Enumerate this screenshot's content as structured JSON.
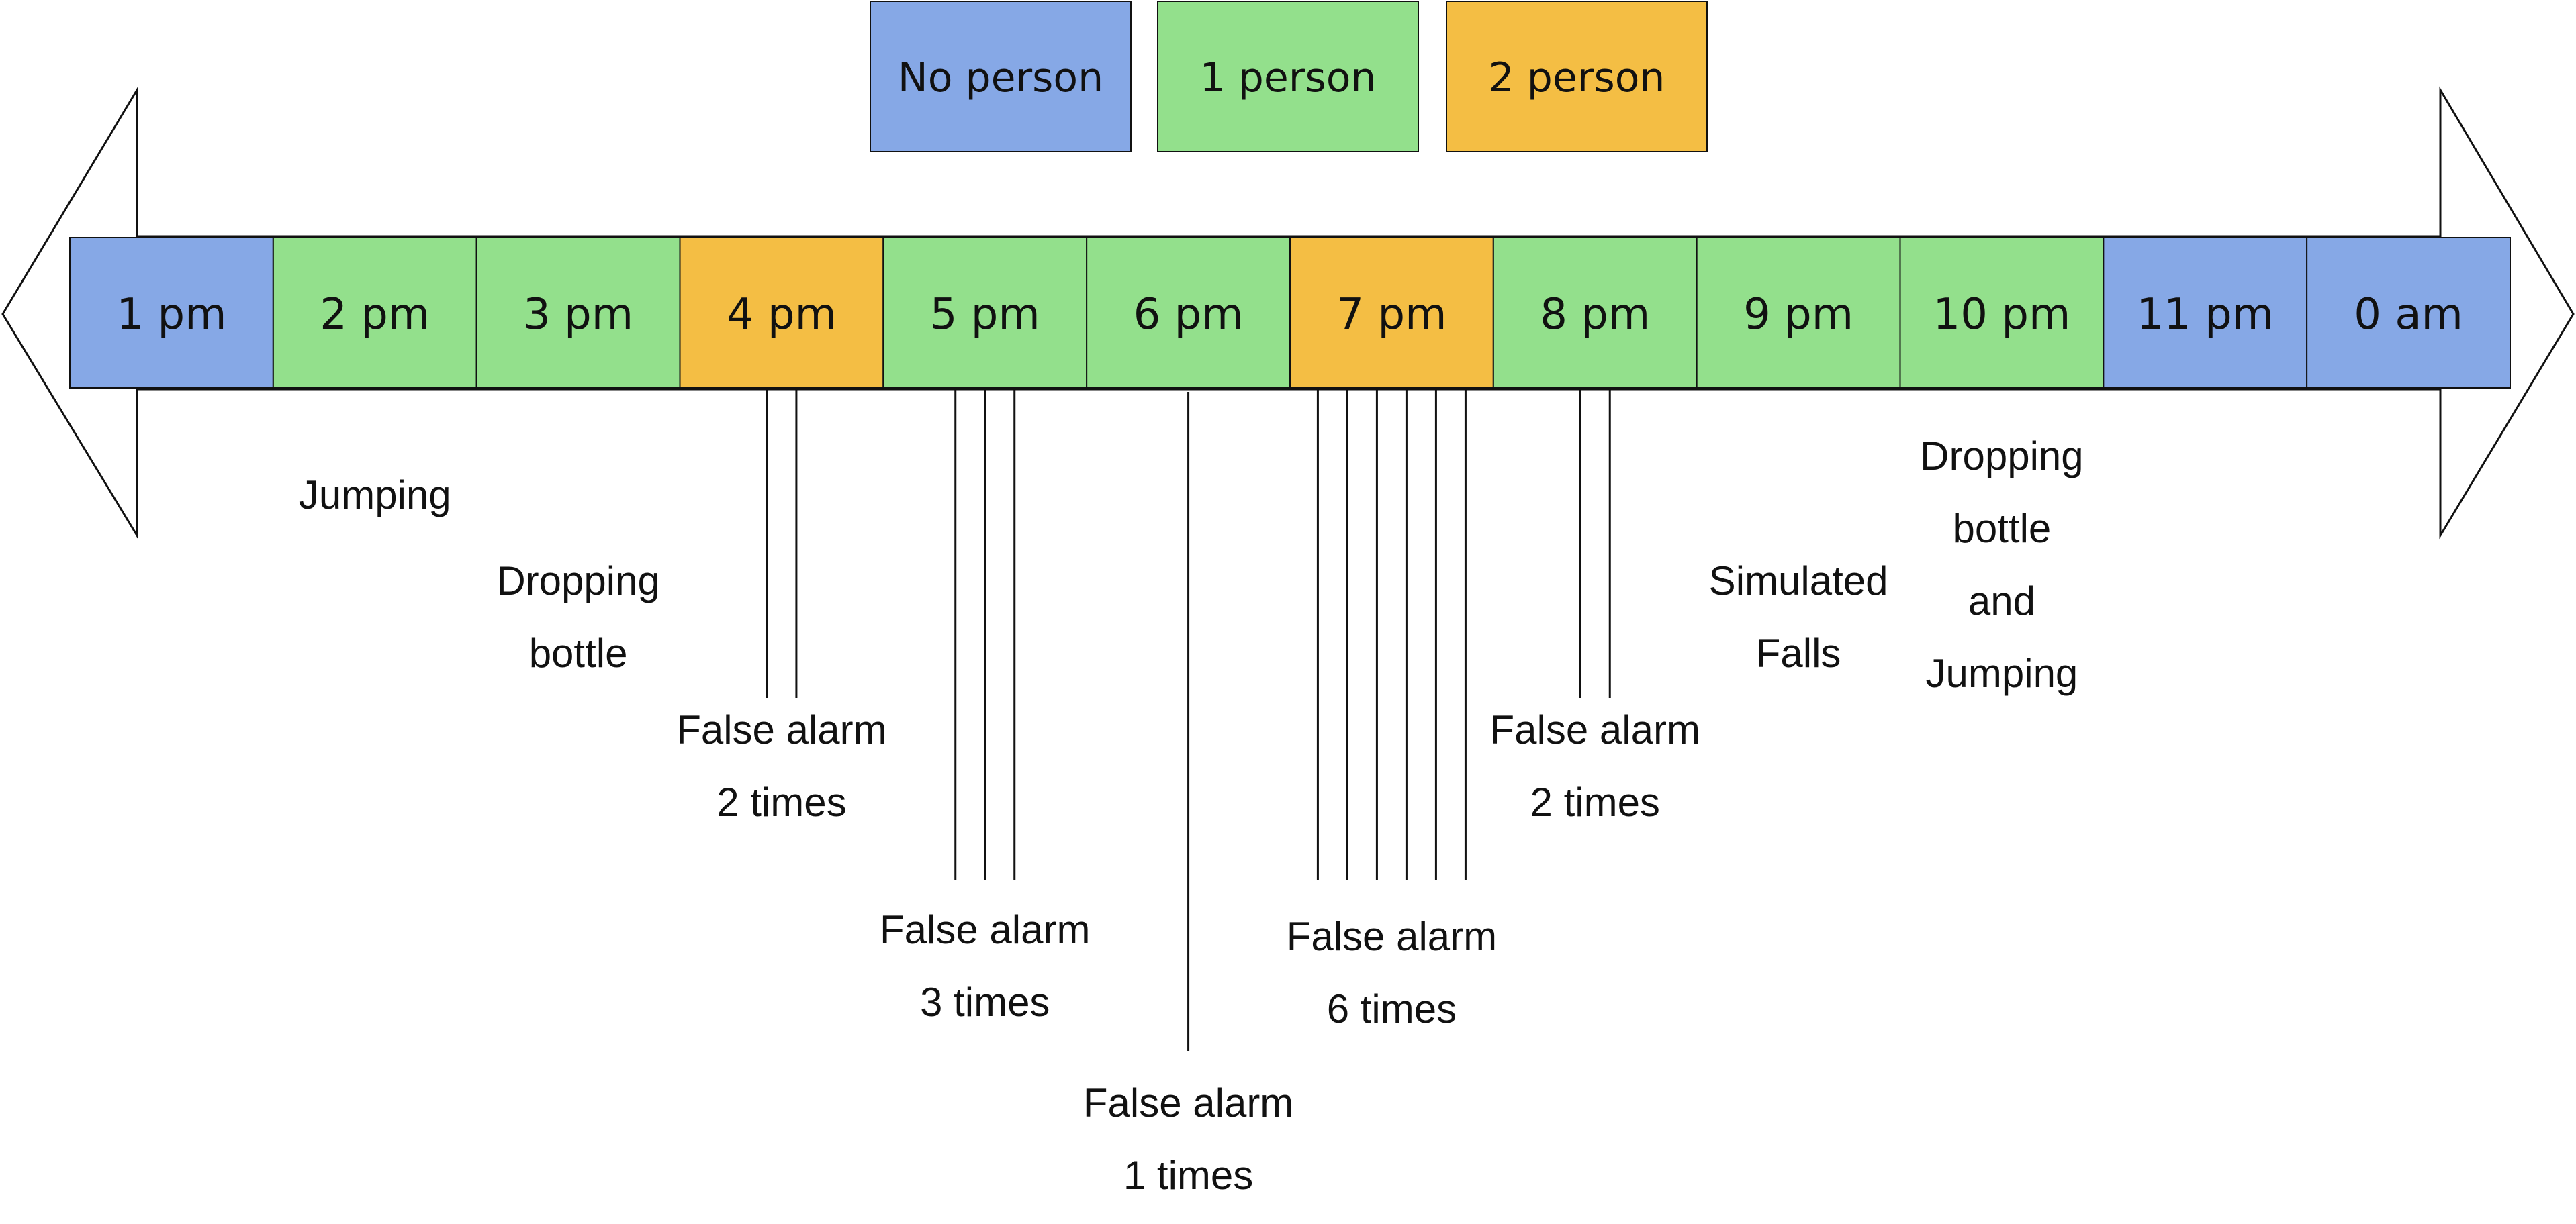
{
  "colors": {
    "no_person": "#86A8E6",
    "one_person": "#93E08C",
    "two_person": "#F4BE44",
    "line": "#111111",
    "background": "#FFFFFF"
  },
  "legend": [
    {
      "label": "No person",
      "color_key": "no_person"
    },
    {
      "label": "1 person",
      "color_key": "one_person"
    },
    {
      "label": "2 person",
      "color_key": "two_person"
    }
  ],
  "timeline": [
    {
      "label": "1 pm",
      "color_key": "no_person"
    },
    {
      "label": "2 pm",
      "color_key": "one_person"
    },
    {
      "label": "3 pm",
      "color_key": "one_person"
    },
    {
      "label": "4 pm",
      "color_key": "two_person"
    },
    {
      "label": "5 pm",
      "color_key": "one_person"
    },
    {
      "label": "6 pm",
      "color_key": "one_person"
    },
    {
      "label": "7 pm",
      "color_key": "two_person"
    },
    {
      "label": "8 pm",
      "color_key": "one_person"
    },
    {
      "label": "9 pm",
      "color_key": "one_person"
    },
    {
      "label": "10 pm",
      "color_key": "one_person"
    },
    {
      "label": "11 pm",
      "color_key": "no_person"
    },
    {
      "label": "0 am",
      "color_key": "no_person"
    }
  ],
  "annotations": [
    {
      "slot": 1,
      "lines": [
        "Jumping"
      ],
      "markers": 0
    },
    {
      "slot": 2,
      "lines": [
        "Dropping",
        "bottle"
      ],
      "markers": 0
    },
    {
      "slot": 3,
      "lines": [
        "False alarm",
        "2 times"
      ],
      "markers": 2
    },
    {
      "slot": 4,
      "lines": [
        "False alarm",
        "3 times"
      ],
      "markers": 3
    },
    {
      "slot": 5,
      "lines": [
        "False alarm",
        "1 times"
      ],
      "markers": 1
    },
    {
      "slot": 6,
      "lines": [
        "False alarm",
        "6 times"
      ],
      "markers": 6
    },
    {
      "slot": 7,
      "lines": [
        "False alarm",
        "2 times"
      ],
      "markers": 2
    },
    {
      "slot": 8,
      "lines": [
        "Simulated",
        "Falls"
      ],
      "markers": 0
    },
    {
      "slot": 9,
      "lines": [
        "Dropping",
        "bottle",
        "and",
        "Jumping"
      ],
      "markers": 0
    }
  ]
}
